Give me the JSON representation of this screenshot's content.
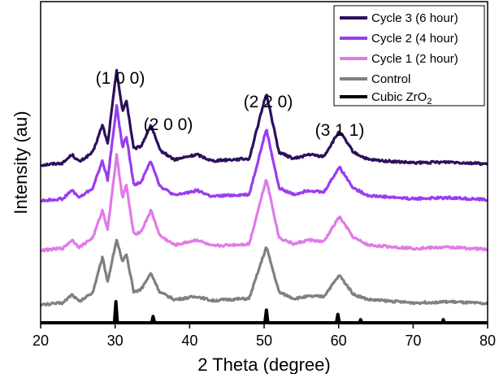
{
  "chart_data": {
    "type": "line",
    "xlabel": "2 Theta (degree)",
    "ylabel": "Intensity (au)",
    "xlim": [
      20,
      80
    ],
    "xticks": [
      "20",
      "30",
      "40",
      "50",
      "60",
      "70",
      "80"
    ],
    "yaxis": "stacked offsets, no tick labels",
    "grid": false,
    "legend_placement": "top-right",
    "series": [
      {
        "name": "Cycle 3 (6 hour)",
        "color": "#2d0f5e",
        "offset": 3,
        "points": [
          [
            20,
            0
          ],
          [
            23,
            0.02
          ],
          [
            24.2,
            0.1
          ],
          [
            25.2,
            0.03
          ],
          [
            27,
            0.12
          ],
          [
            28.3,
            0.38
          ],
          [
            29,
            0.2
          ],
          [
            30.2,
            0.9
          ],
          [
            31,
            0.5
          ],
          [
            31.5,
            0.62
          ],
          [
            32.5,
            0.15
          ],
          [
            33.5,
            0.18
          ],
          [
            34.8,
            0.38
          ],
          [
            36,
            0.14
          ],
          [
            38,
            0.05
          ],
          [
            41,
            0.1
          ],
          [
            43,
            0.04
          ],
          [
            45,
            0.05
          ],
          [
            48,
            0.06
          ],
          [
            50.3,
            0.68
          ],
          [
            52,
            0.12
          ],
          [
            54,
            0.06
          ],
          [
            56,
            0.1
          ],
          [
            58,
            0.08
          ],
          [
            60.1,
            0.32
          ],
          [
            62,
            0.12
          ],
          [
            64,
            0.05
          ],
          [
            70,
            0.02
          ],
          [
            75,
            0.03
          ],
          [
            80,
            0.01
          ]
        ]
      },
      {
        "name": "Cycle 2 (4 hour)",
        "color": "#9b3cf0",
        "offset": 2,
        "points": [
          [
            20,
            0
          ],
          [
            23,
            0.02
          ],
          [
            24.2,
            0.1
          ],
          [
            25.2,
            0.03
          ],
          [
            27,
            0.12
          ],
          [
            28.3,
            0.38
          ],
          [
            29,
            0.2
          ],
          [
            30.2,
            0.9
          ],
          [
            31,
            0.5
          ],
          [
            31.5,
            0.62
          ],
          [
            32.5,
            0.15
          ],
          [
            33.5,
            0.18
          ],
          [
            34.8,
            0.38
          ],
          [
            36,
            0.14
          ],
          [
            38,
            0.05
          ],
          [
            41,
            0.1
          ],
          [
            43,
            0.04
          ],
          [
            45,
            0.05
          ],
          [
            48,
            0.06
          ],
          [
            50.3,
            0.68
          ],
          [
            52,
            0.12
          ],
          [
            54,
            0.06
          ],
          [
            56,
            0.1
          ],
          [
            58,
            0.08
          ],
          [
            60.1,
            0.32
          ],
          [
            62,
            0.12
          ],
          [
            64,
            0.05
          ],
          [
            70,
            0.02
          ],
          [
            75,
            0.03
          ],
          [
            80,
            0.01
          ]
        ]
      },
      {
        "name": "Cycle 1 (2 hour)",
        "color": "#e07ae8",
        "offset": 1,
        "points": [
          [
            20,
            0
          ],
          [
            23,
            0.02
          ],
          [
            24.2,
            0.1
          ],
          [
            25.2,
            0.03
          ],
          [
            27,
            0.12
          ],
          [
            28.3,
            0.38
          ],
          [
            29,
            0.2
          ],
          [
            30.2,
            0.9
          ],
          [
            31,
            0.5
          ],
          [
            31.5,
            0.62
          ],
          [
            32.5,
            0.15
          ],
          [
            33.5,
            0.18
          ],
          [
            34.8,
            0.38
          ],
          [
            36,
            0.14
          ],
          [
            38,
            0.05
          ],
          [
            41,
            0.1
          ],
          [
            43,
            0.04
          ],
          [
            45,
            0.05
          ],
          [
            48,
            0.06
          ],
          [
            50.3,
            0.68
          ],
          [
            52,
            0.12
          ],
          [
            54,
            0.06
          ],
          [
            56,
            0.1
          ],
          [
            58,
            0.08
          ],
          [
            60.1,
            0.32
          ],
          [
            62,
            0.12
          ],
          [
            64,
            0.05
          ],
          [
            70,
            0.02
          ],
          [
            75,
            0.03
          ],
          [
            80,
            0.01
          ]
        ]
      },
      {
        "name": "Control",
        "color": "#808080",
        "offset": 0,
        "points": [
          [
            20,
            0
          ],
          [
            23,
            0.02
          ],
          [
            24.2,
            0.1
          ],
          [
            25.2,
            0.03
          ],
          [
            27,
            0.12
          ],
          [
            28.3,
            0.45
          ],
          [
            29,
            0.22
          ],
          [
            30.2,
            0.62
          ],
          [
            31,
            0.4
          ],
          [
            31.5,
            0.48
          ],
          [
            32.5,
            0.12
          ],
          [
            33.5,
            0.15
          ],
          [
            34.8,
            0.3
          ],
          [
            36,
            0.12
          ],
          [
            38,
            0.05
          ],
          [
            41,
            0.08
          ],
          [
            43,
            0.04
          ],
          [
            45,
            0.05
          ],
          [
            48,
            0.06
          ],
          [
            50.3,
            0.55
          ],
          [
            52,
            0.12
          ],
          [
            54,
            0.06
          ],
          [
            56,
            0.08
          ],
          [
            58,
            0.08
          ],
          [
            60.1,
            0.28
          ],
          [
            62,
            0.1
          ],
          [
            64,
            0.05
          ],
          [
            70,
            0.02
          ],
          [
            75,
            0.03
          ],
          [
            80,
            0.01
          ]
        ]
      },
      {
        "name": "Cubic ZrO2",
        "color": "#000000",
        "offset": -1,
        "points": [
          [
            20,
            0
          ],
          [
            29.9,
            0
          ],
          [
            30.1,
            0.2
          ],
          [
            30.3,
            0
          ],
          [
            34.9,
            0
          ],
          [
            35.1,
            0.06
          ],
          [
            35.3,
            0
          ],
          [
            50.1,
            0
          ],
          [
            50.3,
            0.12
          ],
          [
            50.5,
            0
          ],
          [
            59.7,
            0
          ],
          [
            59.9,
            0.08
          ],
          [
            60.1,
            0
          ],
          [
            62.8,
            0
          ],
          [
            62.95,
            0.03
          ],
          [
            63.1,
            0
          ],
          [
            73.9,
            0
          ],
          [
            74.05,
            0.03
          ],
          [
            74.2,
            0
          ],
          [
            80,
            0
          ]
        ]
      }
    ],
    "annotations": [
      {
        "text": "(1 0 0)",
        "x": 30.2
      },
      {
        "text": "(2 0 0)",
        "x": 34.8
      },
      {
        "text": "(2 2 0)",
        "x": 50.3
      },
      {
        "text": "(3 1 1)",
        "x": 60.1
      }
    ],
    "legend": [
      {
        "label": "Cycle 3 (6 hour)",
        "color": "#2d0f5e"
      },
      {
        "label": "Cycle 2 (4 hour)",
        "color": "#9b3cf0"
      },
      {
        "label": "Cycle 1 (2 hour)",
        "color": "#e07ae8"
      },
      {
        "label": "Control",
        "color": "#808080"
      },
      {
        "label_main": "Cubic ZrO",
        "label_sub": "2",
        "color": "#000000"
      }
    ]
  }
}
